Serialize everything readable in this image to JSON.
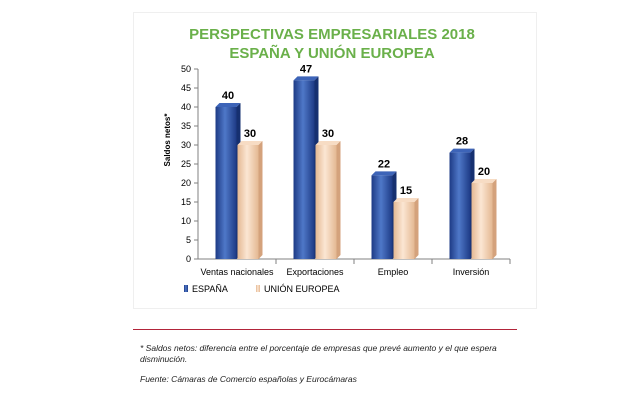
{
  "chart_data": {
    "type": "bar",
    "title": [
      "PERSPECTIVAS EMPRESARIALES 2018",
      "ESPAÑA Y UNIÓN EUROPEA"
    ],
    "categories": [
      "Ventas nacionales",
      "Exportaciones",
      "Empleo",
      "Inversión"
    ],
    "series": [
      {
        "name": "ESPAÑA",
        "values": [
          40,
          47,
          22,
          28
        ],
        "color": "#2a4ea1"
      },
      {
        "name": "UNIÓN EUROPEA",
        "values": [
          30,
          30,
          15,
          20
        ],
        "color": "#f3cfb0"
      }
    ],
    "ylabel": "Saldos netos*",
    "xlabel": "",
    "ylim": [
      0,
      50
    ],
    "yticks": [
      0,
      5,
      10,
      15,
      20,
      25,
      30,
      35,
      40,
      45,
      50
    ],
    "grid": false,
    "legend_position": "bottom-left"
  },
  "footnote": "* Saldos netos: diferencia entre el porcentaje de empresas que  prevé aumento y el que espera disminución.",
  "source": "Fuente: Cámaras de Comercio españolas y Eurocámaras"
}
